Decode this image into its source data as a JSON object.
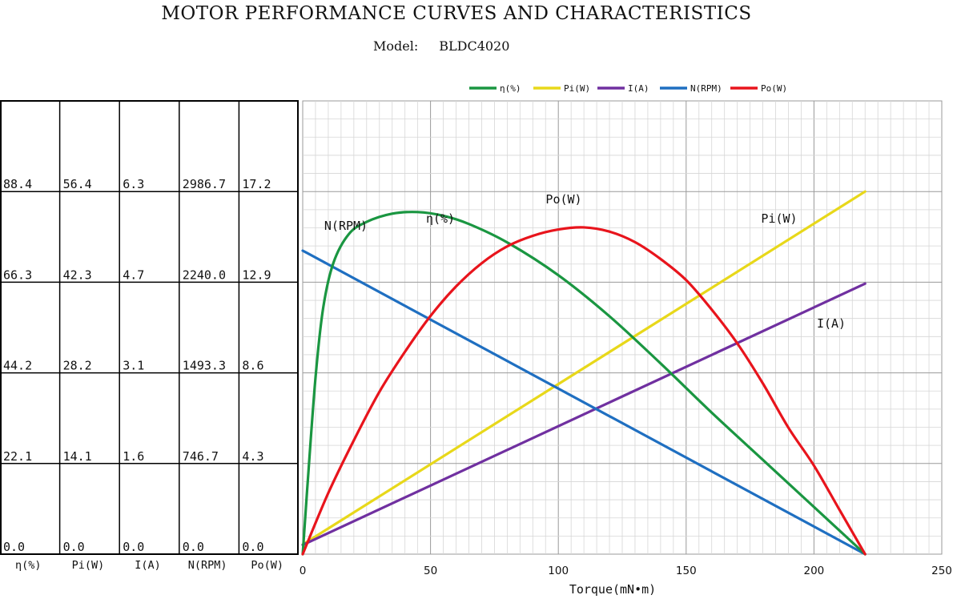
{
  "header": {
    "title": "MOTOR PERFORMANCE CURVES AND CHARACTERISTICS",
    "model_label": "Model:",
    "model_value": "BLDC4020"
  },
  "chart_data": {
    "type": "line",
    "title": "MOTOR PERFORMANCE CURVES AND CHARACTERISTICS",
    "xlabel": "Torque(mN•m)",
    "xlim": [
      0,
      250
    ],
    "xticks": [
      0,
      50,
      100,
      150,
      200,
      250
    ],
    "grid": true,
    "legend_position": "top",
    "axis_table": {
      "columns": [
        "η(%)",
        "Pi(W)",
        "I(A)",
        "N(RPM)",
        "Po(W)"
      ],
      "rows": [
        [
          "88.4",
          "56.4",
          "6.3",
          "2986.7",
          "17.2"
        ],
        [
          "66.3",
          "42.3",
          "4.7",
          "2240.0",
          "12.9"
        ],
        [
          "44.2",
          "28.2",
          "3.1",
          "1493.3",
          "8.6"
        ],
        [
          "22.1",
          "14.1",
          "1.6",
          "746.7",
          "4.3"
        ],
        [
          "0.0",
          "0.0",
          "0.0",
          "0.0",
          "0.0"
        ]
      ]
    },
    "series": [
      {
        "name": "η(%)",
        "label": "η(%)",
        "color": "#1a9641",
        "ymax": 110.5,
        "x": [
          0,
          2,
          5,
          8,
          12,
          18,
          25,
          35,
          45,
          55,
          65,
          80,
          100,
          120,
          140,
          160,
          180,
          200,
          220
        ],
        "y": [
          0,
          18,
          43,
          60,
          71,
          78,
          81,
          83,
          83.4,
          82.5,
          80.5,
          76,
          68,
          58,
          46.5,
          34.5,
          23,
          11.5,
          0
        ]
      },
      {
        "name": "Pi(W)",
        "label": "Pi(W)",
        "color": "#e8d81a",
        "ymax": 70.5,
        "x": [
          0,
          220
        ],
        "y": [
          1.5,
          56.4
        ]
      },
      {
        "name": "I(A)",
        "label": "I(A)",
        "color": "#7030a0",
        "ymax": 7.875,
        "x": [
          0,
          220
        ],
        "y": [
          0.16,
          4.7
        ]
      },
      {
        "name": "N(RPM)",
        "label": "N(RPM)",
        "color": "#1f6fc1",
        "ymax": 3733.4,
        "x": [
          0,
          220
        ],
        "y": [
          2500,
          0
        ]
      },
      {
        "name": "Po(W)",
        "label": "Po(W)",
        "color": "#e8141c",
        "ymax": 21.5,
        "x": [
          0,
          10,
          20,
          30,
          40,
          50,
          60,
          70,
          80,
          90,
          100,
          110,
          120,
          130,
          140,
          150,
          160,
          170,
          180,
          190,
          200,
          210,
          220
        ],
        "y": [
          0,
          2.9,
          5.4,
          7.7,
          9.6,
          11.3,
          12.7,
          13.8,
          14.6,
          15.1,
          15.4,
          15.5,
          15.3,
          14.8,
          14.0,
          13.0,
          11.6,
          10.0,
          8.1,
          6.0,
          4.2,
          2.1,
          0
        ]
      }
    ]
  }
}
